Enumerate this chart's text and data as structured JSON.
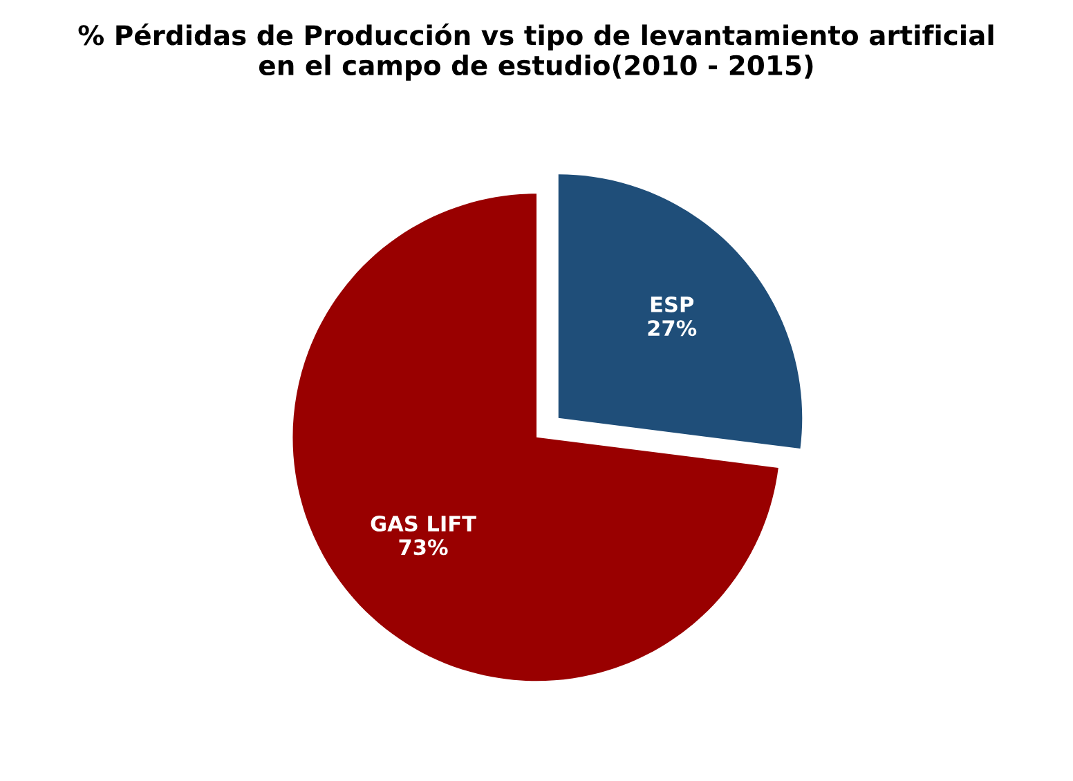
{
  "chart_data": {
    "type": "pie",
    "title": "% Pérdidas de Producción vs tipo de levantamiento artificial\nen el campo de estudio(2010 - 2015)",
    "categories": [
      "ESP",
      "GAS LIFT"
    ],
    "values": [
      27,
      73
    ],
    "colors": [
      "#1f4e79",
      "#990000"
    ],
    "value_labels": [
      "27%",
      "73%"
    ],
    "legend": false
  }
}
